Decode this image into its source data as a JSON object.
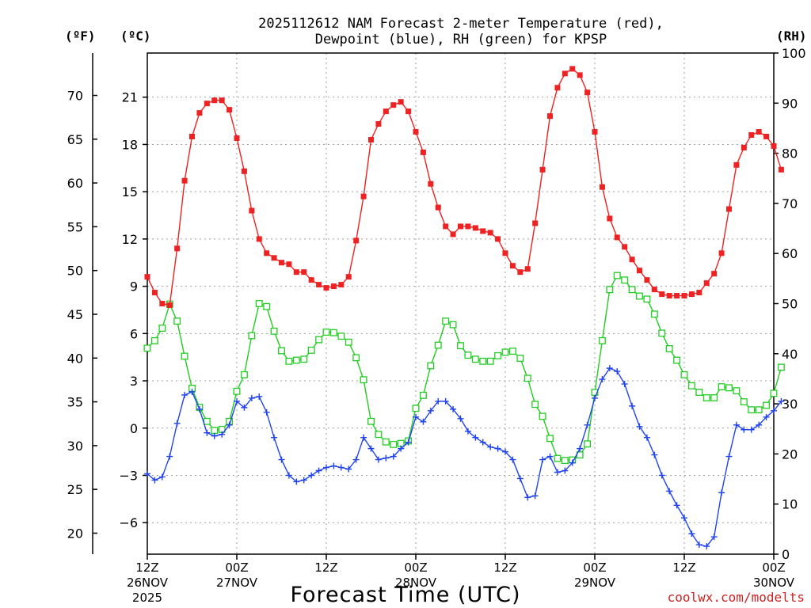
{
  "chart_data": {
    "type": "line",
    "title_line1": "2025112612 NAM Forecast 2-meter Temperature (red),",
    "title_line2": "Dewpoint (blue), RH (green) for KPSP",
    "unit_f": "(ºF)",
    "unit_c": "(ºC)",
    "unit_rh": "(RH)",
    "xlabel": "Forecast Time (UTC)",
    "credit": "coolwx.com/modelts",
    "x_range_hours": [
      0,
      84
    ],
    "x_ticks": [
      {
        "h": 0,
        "l1": "12Z",
        "l2": "26NOV",
        "l3": "2025"
      },
      {
        "h": 12,
        "l1": "00Z",
        "l2": "27NOV",
        "l3": ""
      },
      {
        "h": 24,
        "l1": "12Z",
        "l2": "",
        "l3": ""
      },
      {
        "h": 36,
        "l1": "00Z",
        "l2": "28NOV",
        "l3": ""
      },
      {
        "h": 48,
        "l1": "12Z",
        "l2": "",
        "l3": ""
      },
      {
        "h": 60,
        "l1": "00Z",
        "l2": "29NOV",
        "l3": ""
      },
      {
        "h": 72,
        "l1": "12Z",
        "l2": "",
        "l3": ""
      },
      {
        "h": 84,
        "l1": "00Z",
        "l2": "30NOV",
        "l3": ""
      }
    ],
    "y_left_c": {
      "range": [
        -8,
        23.8
      ],
      "ticks": [
        -6,
        -3,
        0,
        3,
        6,
        9,
        12,
        15,
        18,
        21
      ]
    },
    "y_left_f": {
      "ticks": [
        20,
        25,
        30,
        35,
        40,
        45,
        50,
        55,
        60,
        65,
        70
      ]
    },
    "y_right_rh": {
      "range": [
        0,
        100
      ],
      "ticks": [
        0,
        10,
        20,
        30,
        40,
        50,
        60,
        70,
        80,
        90,
        100
      ]
    },
    "series": [
      {
        "name": "Temperature",
        "color": "#ee2222",
        "marker": "filled-square",
        "unit": "C",
        "values": [
          9.6,
          8.6,
          7.9,
          7.8,
          11.4,
          15.7,
          18.5,
          20,
          20.6,
          20.8,
          20.8,
          20.2,
          18.4,
          16.3,
          13.8,
          12,
          11.1,
          10.8,
          10.5,
          10.4,
          9.9,
          9.9,
          9.4,
          9.1,
          8.9,
          9,
          9.1,
          9.6,
          11.9,
          14.7,
          18.3,
          19.3,
          20.1,
          20.5,
          20.7,
          20.1,
          18.8,
          17.5,
          15.5,
          14,
          12.8,
          12.3,
          12.8,
          12.8,
          12.7,
          12.5,
          12.4,
          12,
          11.1,
          10.3,
          9.9,
          10.1,
          13,
          16.4,
          19.8,
          21.6,
          22.5,
          22.8,
          22.4,
          21.3,
          18.8,
          15.3,
          13.3,
          12.1,
          11.5,
          10.7,
          10,
          9.4,
          8.8,
          8.5,
          8.4,
          8.4,
          8.4,
          8.5,
          8.6,
          9.2,
          9.8,
          11.1,
          13.9,
          16.7,
          17.8,
          18.6,
          18.8,
          18.5,
          17.9,
          16.4
        ]
      },
      {
        "name": "Dewpoint",
        "color": "#2244ee",
        "marker": "plus",
        "unit": "C",
        "values": [
          -2.9,
          -3.3,
          -3.1,
          -1.8,
          0.3,
          2.1,
          2.3,
          1.2,
          -0.3,
          -0.5,
          -0.4,
          0.2,
          1.7,
          1.3,
          1.9,
          2,
          1,
          -0.6,
          -2,
          -3,
          -3.4,
          -3.3,
          -3,
          -2.7,
          -2.5,
          -2.4,
          -2.5,
          -2.6,
          -2,
          -0.6,
          -1.3,
          -2,
          -1.9,
          -1.8,
          -1.3,
          -0.9,
          0.7,
          0.4,
          1.1,
          1.7,
          1.7,
          1.2,
          0.6,
          -0.2,
          -0.6,
          -0.9,
          -1.2,
          -1.3,
          -1.5,
          -2,
          -3.2,
          -4.4,
          -4.3,
          -2,
          -1.8,
          -2.8,
          -2.7,
          -2.2,
          -1.3,
          0.2,
          1.9,
          3.1,
          3.8,
          3.6,
          2.8,
          1.4,
          0.1,
          -0.6,
          -1.7,
          -3,
          -4,
          -4.9,
          -5.7,
          -6.7,
          -7.4,
          -7.5,
          -6.9,
          -4.1,
          -1.8,
          0.2,
          -0.1,
          -0.1,
          0.2,
          0.7,
          1.1,
          1.7
        ]
      },
      {
        "name": "RH",
        "color": "#22cc22",
        "marker": "open-square",
        "unit": "%",
        "values": [
          41.1,
          42.6,
          45.1,
          49.9,
          46.5,
          39.5,
          33.1,
          29.3,
          26.5,
          24.7,
          24.9,
          26.5,
          32.5,
          35.8,
          43.6,
          50,
          49.4,
          44.5,
          40.6,
          38.5,
          38.7,
          38.9,
          40.7,
          42.8,
          44.3,
          44.2,
          43.5,
          42.3,
          39.2,
          34.8,
          26.5,
          23.9,
          22.4,
          21.9,
          22.1,
          22.6,
          29.1,
          31.7,
          37.6,
          41.7,
          46.5,
          45.8,
          41.6,
          39.7,
          38.9,
          38.5,
          38.5,
          39.6,
          40.3,
          40.5,
          39.1,
          35.1,
          29.9,
          27.5,
          23.1,
          19.1,
          18.7,
          18.8,
          19.8,
          22,
          32.3,
          42.6,
          52.8,
          55.6,
          54.7,
          52.8,
          51.5,
          50.9,
          47.9,
          44.1,
          41,
          38.7,
          35.8,
          33.6,
          32.3,
          31.2,
          31.2,
          33.4,
          33.2,
          32.6,
          30.4,
          28.8,
          28.8,
          29.7,
          32.1,
          37.3
        ]
      }
    ]
  }
}
